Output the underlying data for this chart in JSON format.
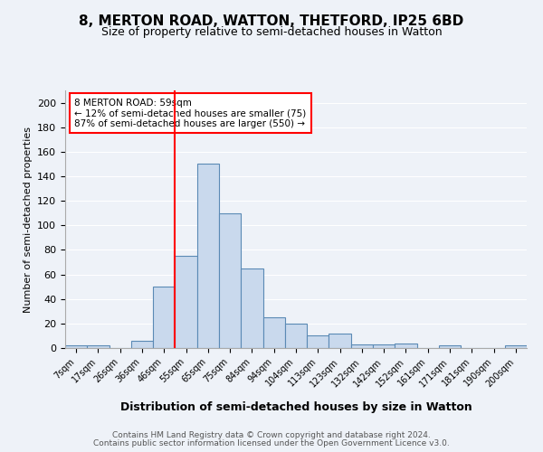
{
  "title1": "8, MERTON ROAD, WATTON, THETFORD, IP25 6BD",
  "title2": "Size of property relative to semi-detached houses in Watton",
  "xlabel": "Distribution of semi-detached houses by size in Watton",
  "ylabel": "Number of semi-detached properties",
  "footer1": "Contains HM Land Registry data © Crown copyright and database right 2024.",
  "footer2": "Contains public sector information licensed under the Open Government Licence v3.0.",
  "annotation_title": "8 MERTON ROAD: 59sqm",
  "annotation_line1": "← 12% of semi-detached houses are smaller (75)",
  "annotation_line2": "87% of semi-detached houses are larger (550) →",
  "bin_labels": [
    "7sqm",
    "17sqm",
    "26sqm",
    "36sqm",
    "46sqm",
    "55sqm",
    "65sqm",
    "75sqm",
    "84sqm",
    "94sqm",
    "104sqm",
    "113sqm",
    "123sqm",
    "132sqm",
    "142sqm",
    "152sqm",
    "161sqm",
    "171sqm",
    "181sqm",
    "190sqm",
    "200sqm"
  ],
  "bar_values": [
    2,
    2,
    0,
    6,
    50,
    75,
    150,
    110,
    65,
    25,
    20,
    10,
    12,
    3,
    3,
    4,
    0,
    2,
    0,
    0,
    2
  ],
  "bar_color": "#c9d9ed",
  "bar_edge_color": "#5b8ab5",
  "red_line_index": 5,
  "ylim": [
    0,
    210
  ],
  "yticks": [
    0,
    20,
    40,
    60,
    80,
    100,
    120,
    140,
    160,
    180,
    200
  ],
  "background_color": "#eef2f8",
  "plot_bg_color": "#eef2f8"
}
